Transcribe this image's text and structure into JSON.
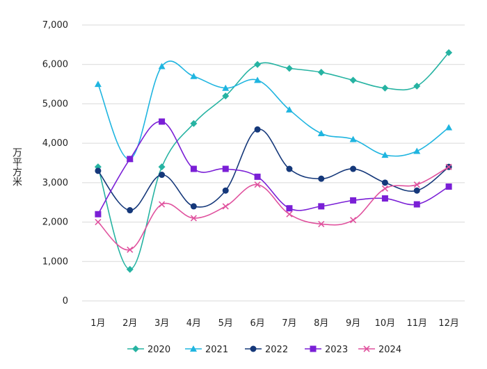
{
  "chart_data": {
    "type": "line",
    "smooth": true,
    "ylabel": "万平方米",
    "xlabel": "",
    "ylim": [
      0,
      7000
    ],
    "yticks": [
      0,
      1000,
      2000,
      3000,
      4000,
      5000,
      6000,
      7000
    ],
    "ytick_labels": [
      "0",
      "1,000",
      "2,000",
      "3,000",
      "4,000",
      "5,000",
      "6,000",
      "7,000"
    ],
    "grid": true,
    "legend_position": "bottom",
    "categories": [
      "1月",
      "2月",
      "3月",
      "4月",
      "5月",
      "6月",
      "7月",
      "8月",
      "9月",
      "10月",
      "11月",
      "12月"
    ],
    "series": [
      {
        "name": "2020",
        "color": "#26B3A2",
        "marker": "diamond",
        "values": [
          3400,
          800,
          3400,
          4500,
          5200,
          6000,
          5900,
          5800,
          5600,
          5400,
          5450,
          6300
        ]
      },
      {
        "name": "2021",
        "color": "#1FB5E0",
        "marker": "triangle",
        "values": [
          5500,
          3600,
          5950,
          5700,
          5400,
          5600,
          4850,
          4250,
          4100,
          3700,
          3800,
          4400
        ]
      },
      {
        "name": "2022",
        "color": "#15387A",
        "marker": "circle",
        "values": [
          3300,
          2300,
          3200,
          2400,
          2800,
          4350,
          3350,
          3100,
          3350,
          3000,
          2800,
          3400
        ]
      },
      {
        "name": "2023",
        "color": "#7A1FD6",
        "marker": "square",
        "values": [
          2200,
          3600,
          4550,
          3350,
          3350,
          3150,
          2350,
          2400,
          2550,
          2600,
          2450,
          2900
        ]
      },
      {
        "name": "2024",
        "color": "#E0529E",
        "marker": "cross",
        "values": [
          2000,
          1300,
          2450,
          2100,
          2400,
          2950,
          2200,
          1950,
          2050,
          2850,
          2950,
          3400
        ]
      }
    ]
  }
}
